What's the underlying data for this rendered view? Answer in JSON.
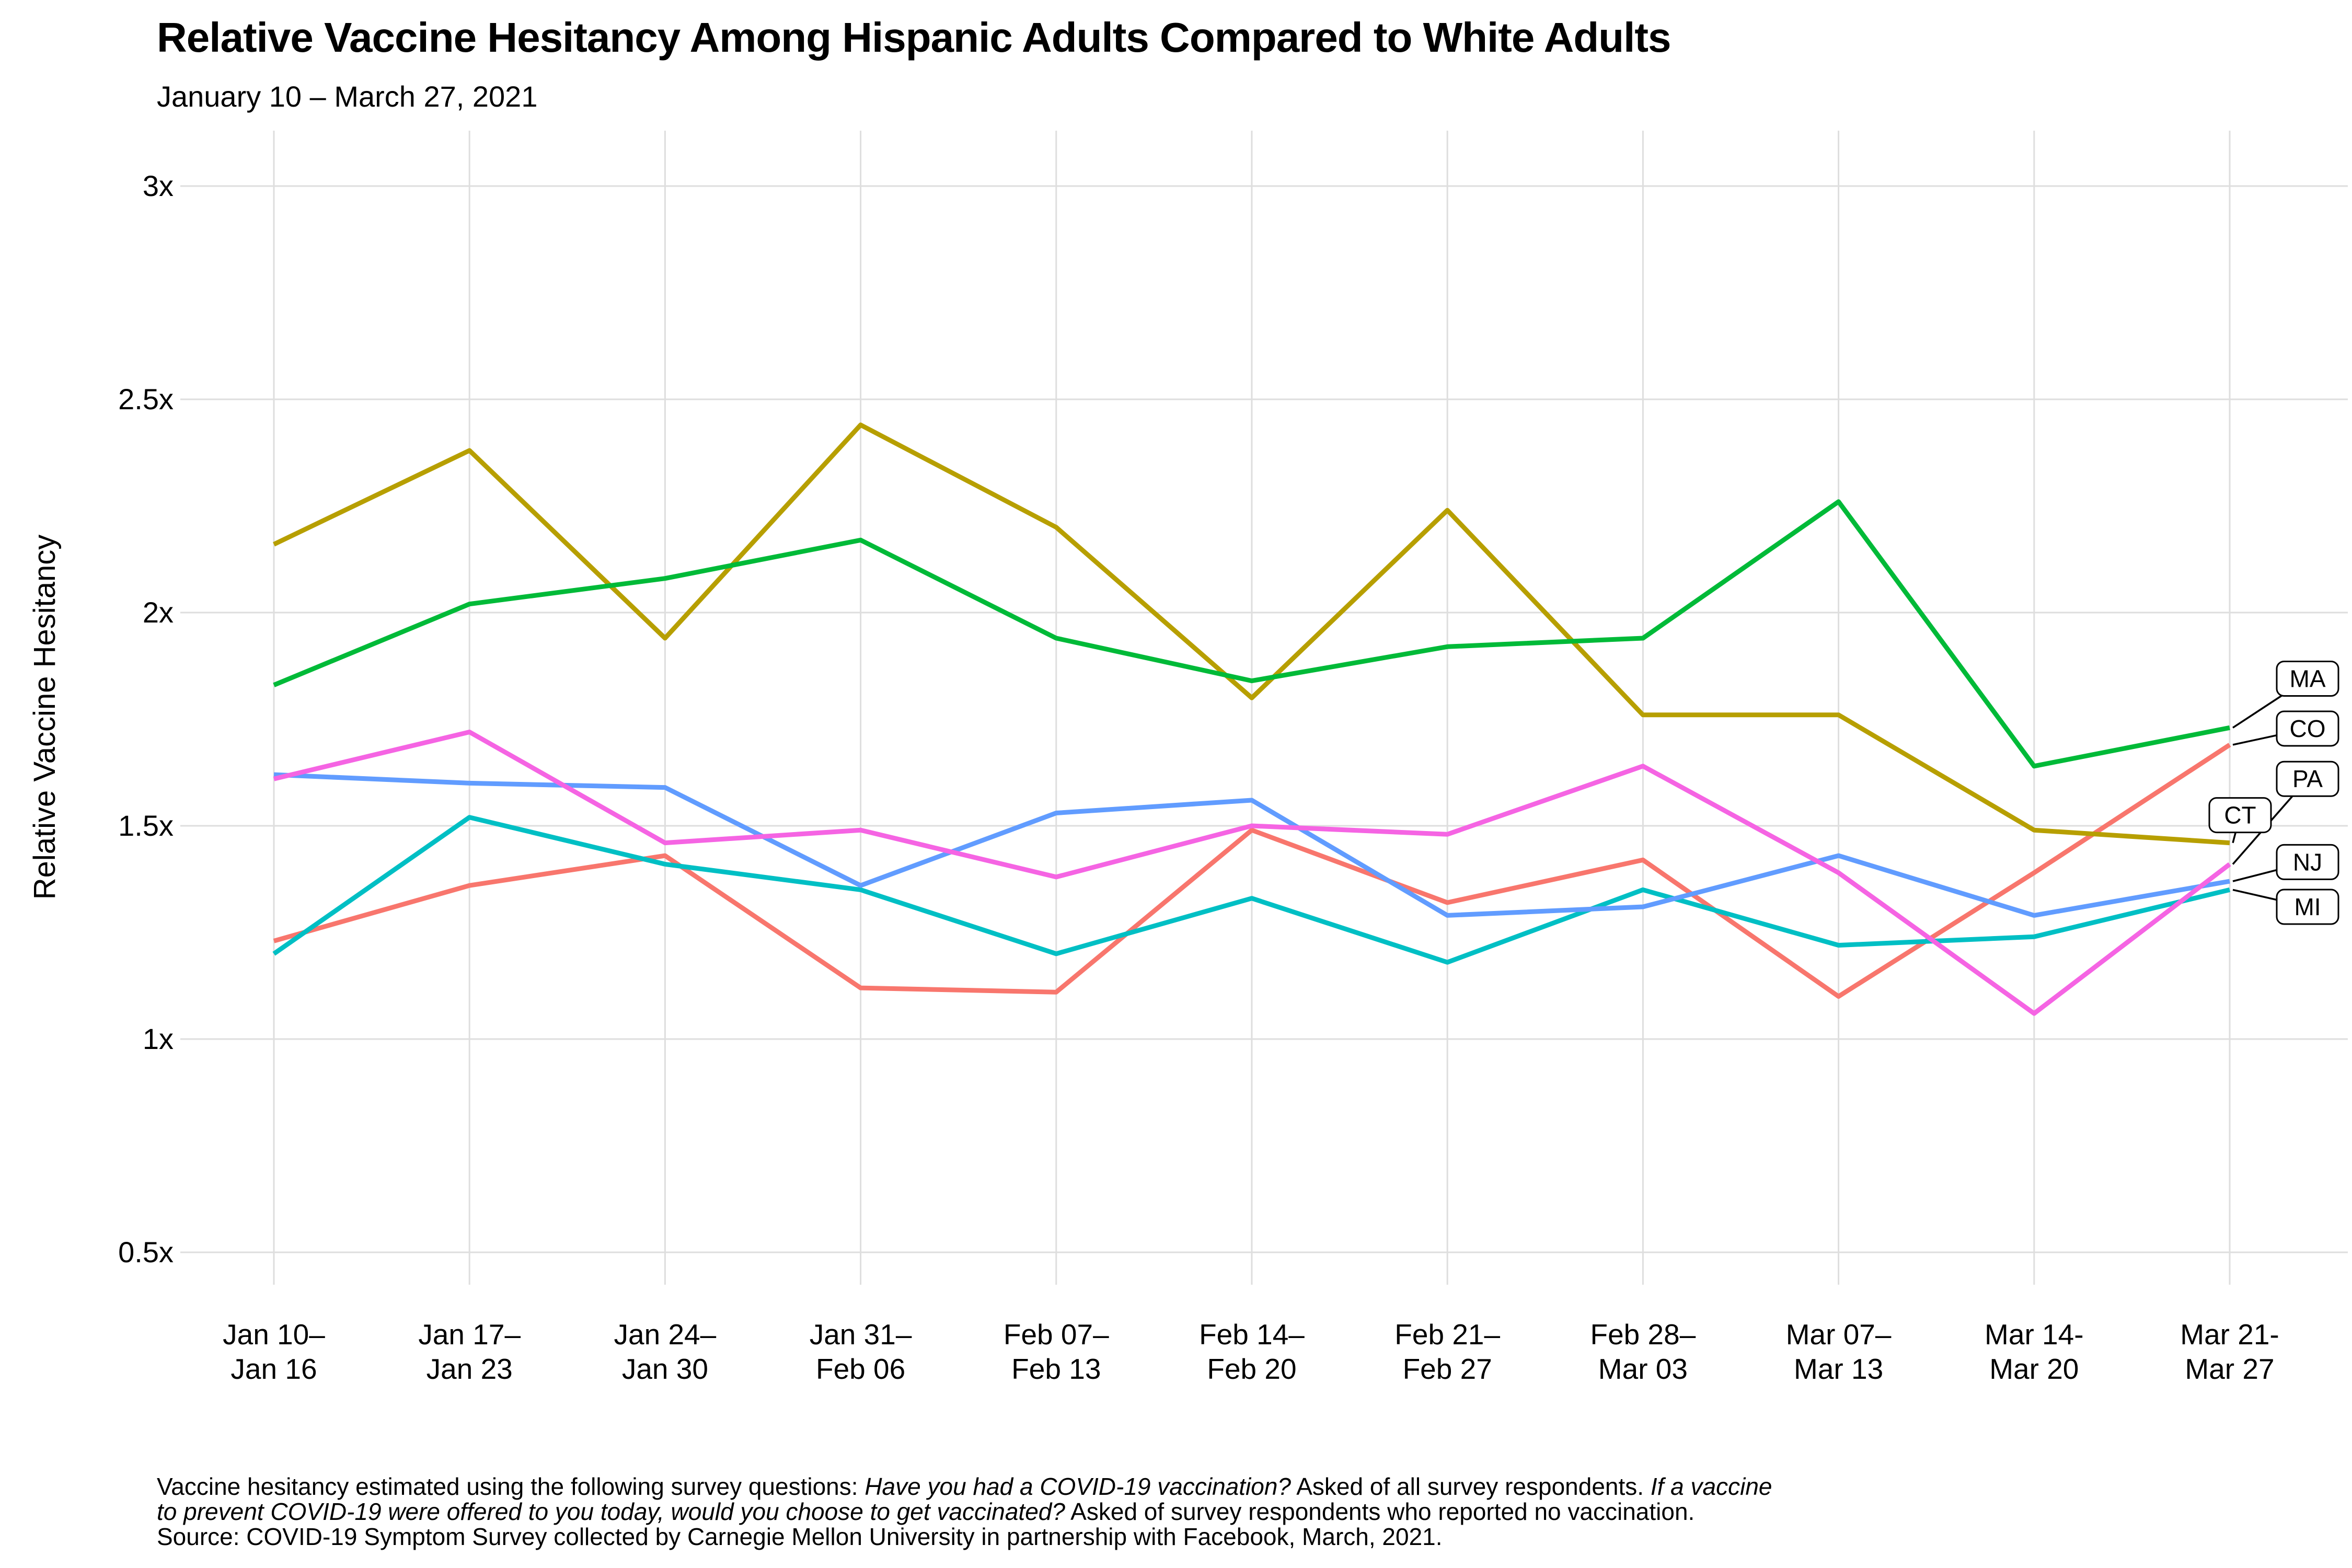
{
  "chart": {
    "title": "Relative Vaccine Hesitancy Among Hispanic Adults Compared to White Adults",
    "subtitle": "January 10 – March 27, 2021",
    "y_axis_title": "Relative Vaccine Hesitancy"
  },
  "chart_data": {
    "type": "line",
    "title": "Relative Vaccine Hesitancy Among Hispanic Adults Compared to White Adults",
    "subtitle": "January 10 – March 27, 2021",
    "xlabel": "",
    "ylabel": "Relative Vaccine Hesitancy",
    "ylim": [
      0.43,
      3.09
    ],
    "grid": true,
    "legend_position": "right-end-labels",
    "x_tick_labels": [
      [
        "Jan 10–",
        "Jan 16"
      ],
      [
        "Jan 17–",
        "Jan 23"
      ],
      [
        "Jan 24–",
        "Jan 30"
      ],
      [
        "Jan 31–",
        "Feb 06"
      ],
      [
        "Feb 07–",
        "Feb 13"
      ],
      [
        "Feb 14–",
        "Feb 20"
      ],
      [
        "Feb 21–",
        "Feb 27"
      ],
      [
        "Feb 28–",
        "Mar 03"
      ],
      [
        "Mar 07–",
        "Mar 13"
      ],
      [
        "Mar 14-",
        "Mar 20"
      ],
      [
        "Mar 21-",
        "Mar 27"
      ]
    ],
    "y_ticks": [
      {
        "label": "3x",
        "value": 3
      },
      {
        "label": "2.5x",
        "value": 2.5
      },
      {
        "label": "2x",
        "value": 2
      },
      {
        "label": "1.5x",
        "value": 1.5
      },
      {
        "label": "1x",
        "value": 1
      },
      {
        "label": "0.5x",
        "value": 0.5
      }
    ],
    "series": [
      {
        "name": "CO",
        "color": "#F8766D",
        "values": [
          1.23,
          1.36,
          1.43,
          1.12,
          1.11,
          1.49,
          1.32,
          1.42,
          1.1,
          1.39,
          1.69
        ]
      },
      {
        "name": "CT",
        "color": "#B79F00",
        "values": [
          2.16,
          2.38,
          1.94,
          2.44,
          2.2,
          1.8,
          2.24,
          1.76,
          1.76,
          1.49,
          1.46
        ]
      },
      {
        "name": "MA",
        "color": "#00BA38",
        "values": [
          1.83,
          2.02,
          2.08,
          2.17,
          1.94,
          1.84,
          1.92,
          1.94,
          2.26,
          1.64,
          1.73
        ]
      },
      {
        "name": "MI",
        "color": "#00BFC4",
        "values": [
          1.2,
          1.52,
          1.41,
          1.35,
          1.2,
          1.33,
          1.18,
          1.35,
          1.22,
          1.24,
          1.35
        ]
      },
      {
        "name": "NJ",
        "color": "#619CFF",
        "values": [
          1.62,
          1.6,
          1.59,
          1.36,
          1.53,
          1.56,
          1.29,
          1.31,
          1.43,
          1.29,
          1.37
        ]
      },
      {
        "name": "PA",
        "color": "#F564E3",
        "values": [
          1.61,
          1.72,
          1.46,
          1.49,
          1.38,
          1.5,
          1.48,
          1.64,
          1.39,
          1.06,
          1.41
        ]
      }
    ],
    "end_labels": [
      {
        "text": "MA",
        "series": "MA",
        "box_x": 4415,
        "box_y_value": 1.845
      },
      {
        "text": "CO",
        "series": "CO",
        "box_x": 4415,
        "box_y_value": 1.728
      },
      {
        "text": "PA",
        "series": "PA",
        "box_x": 4415,
        "box_y_value": 1.61
      },
      {
        "text": "CT",
        "series": "CT",
        "box_x": 4286,
        "box_y_value": 1.525
      },
      {
        "text": "NJ",
        "series": "NJ",
        "box_x": 4415,
        "box_y_value": 1.415
      },
      {
        "text": "MI",
        "series": "MI",
        "box_x": 4415,
        "box_y_value": 1.31
      }
    ],
    "grid_color": "#DEDEDE",
    "line_width": 9
  },
  "footer_lines": [
    [
      {
        "t": "Vaccine hesitancy estimated using the following survey questions: ",
        "i": false
      },
      {
        "t": "Have you had a COVID-19 vaccination?",
        "i": true
      },
      {
        "t": " Asked of all survey respondents. ",
        "i": false
      },
      {
        "t": "If a vaccine",
        "i": true
      }
    ],
    [
      {
        "t": "to prevent COVID-19 were offered to you today, would you choose to get vaccinated?",
        "i": true
      },
      {
        "t": " Asked of survey respondents who reported no vaccination.",
        "i": false
      }
    ],
    [
      {
        "t": "Source: COVID-19 Symptom Survey collected by Carnegie Mellon University in partnership with Facebook, March, 2021.",
        "i": false
      }
    ]
  ]
}
